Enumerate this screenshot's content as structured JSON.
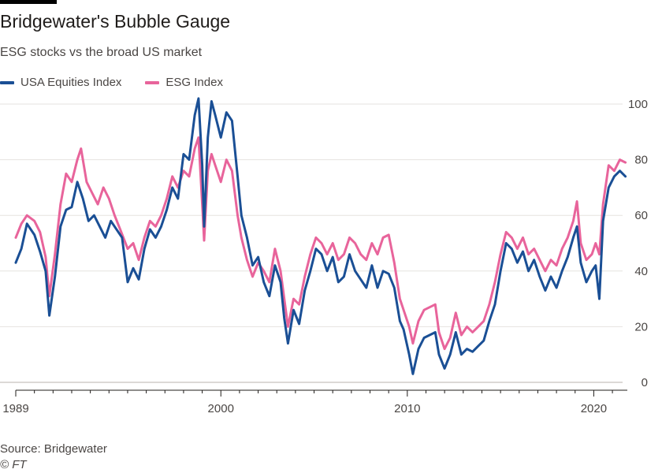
{
  "brand": {
    "bar_color": "#000000"
  },
  "chart_data": {
    "type": "line",
    "title": "Bridgewater's Bubble Gauge",
    "subtitle": "ESG stocks vs the broad US market",
    "xlabel": "",
    "ylabel": "",
    "xlim": [
      1989,
      2021.8
    ],
    "ylim": [
      0,
      100
    ],
    "x_ticks": [
      1989,
      2000,
      2010,
      2020
    ],
    "x_tick_labels": [
      "1989",
      "2000",
      "2010",
      "2020"
    ],
    "y_ticks": [
      0,
      20,
      40,
      60,
      80,
      100
    ],
    "y_tick_labels": [
      "0",
      "20",
      "40",
      "60",
      "80",
      "100"
    ],
    "grid": true,
    "legend_position": "top-left",
    "series": [
      {
        "name": "USA Equities Index",
        "color": "#1a4f95",
        "points": [
          [
            1989.0,
            43
          ],
          [
            1989.3,
            48
          ],
          [
            1989.6,
            57
          ],
          [
            1990.0,
            53
          ],
          [
            1990.3,
            47
          ],
          [
            1990.6,
            40
          ],
          [
            1990.8,
            24
          ],
          [
            1991.1,
            38
          ],
          [
            1991.4,
            56
          ],
          [
            1991.7,
            62
          ],
          [
            1992.0,
            63
          ],
          [
            1992.3,
            72
          ],
          [
            1992.6,
            66
          ],
          [
            1992.9,
            58
          ],
          [
            1993.2,
            60
          ],
          [
            1993.5,
            56
          ],
          [
            1993.8,
            52
          ],
          [
            1994.1,
            58
          ],
          [
            1994.4,
            55
          ],
          [
            1994.7,
            52
          ],
          [
            1995.0,
            36
          ],
          [
            1995.3,
            41
          ],
          [
            1995.6,
            37
          ],
          [
            1995.9,
            48
          ],
          [
            1996.2,
            55
          ],
          [
            1996.5,
            52
          ],
          [
            1996.8,
            56
          ],
          [
            1997.1,
            62
          ],
          [
            1997.4,
            70
          ],
          [
            1997.7,
            66
          ],
          [
            1998.0,
            82
          ],
          [
            1998.3,
            80
          ],
          [
            1998.6,
            96
          ],
          [
            1998.8,
            102
          ],
          [
            1999.0,
            78
          ],
          [
            1999.1,
            56
          ],
          [
            1999.3,
            88
          ],
          [
            1999.5,
            101
          ],
          [
            1999.7,
            96
          ],
          [
            2000.0,
            88
          ],
          [
            2000.3,
            97
          ],
          [
            2000.6,
            94
          ],
          [
            2000.9,
            74
          ],
          [
            2001.1,
            60
          ],
          [
            2001.4,
            52
          ],
          [
            2001.7,
            42
          ],
          [
            2002.0,
            45
          ],
          [
            2002.3,
            36
          ],
          [
            2002.6,
            31
          ],
          [
            2002.9,
            42
          ],
          [
            2003.2,
            36
          ],
          [
            2003.4,
            23
          ],
          [
            2003.6,
            14
          ],
          [
            2003.9,
            26
          ],
          [
            2004.2,
            21
          ],
          [
            2004.5,
            33
          ],
          [
            2004.8,
            40
          ],
          [
            2005.1,
            48
          ],
          [
            2005.4,
            46
          ],
          [
            2005.7,
            40
          ],
          [
            2006.0,
            45
          ],
          [
            2006.3,
            36
          ],
          [
            2006.6,
            38
          ],
          [
            2006.9,
            46
          ],
          [
            2007.2,
            40
          ],
          [
            2007.5,
            37
          ],
          [
            2007.8,
            34
          ],
          [
            2008.1,
            42
          ],
          [
            2008.4,
            34
          ],
          [
            2008.7,
            40
          ],
          [
            2009.0,
            39
          ],
          [
            2009.3,
            34
          ],
          [
            2009.6,
            22
          ],
          [
            2009.8,
            19
          ],
          [
            2010.1,
            10
          ],
          [
            2010.3,
            3
          ],
          [
            2010.6,
            12
          ],
          [
            2010.9,
            16
          ],
          [
            2011.2,
            17
          ],
          [
            2011.5,
            18
          ],
          [
            2011.7,
            10
          ],
          [
            2012.0,
            5
          ],
          [
            2012.3,
            10
          ],
          [
            2012.6,
            18
          ],
          [
            2012.9,
            10
          ],
          [
            2013.2,
            12
          ],
          [
            2013.5,
            11
          ],
          [
            2013.8,
            13
          ],
          [
            2014.1,
            15
          ],
          [
            2014.4,
            22
          ],
          [
            2014.7,
            28
          ],
          [
            2015.0,
            40
          ],
          [
            2015.3,
            50
          ],
          [
            2015.6,
            48
          ],
          [
            2015.9,
            43
          ],
          [
            2016.2,
            47
          ],
          [
            2016.5,
            40
          ],
          [
            2016.8,
            44
          ],
          [
            2017.1,
            38
          ],
          [
            2017.4,
            33
          ],
          [
            2017.7,
            38
          ],
          [
            2018.0,
            34
          ],
          [
            2018.3,
            40
          ],
          [
            2018.6,
            45
          ],
          [
            2018.9,
            52
          ],
          [
            2019.1,
            56
          ],
          [
            2019.3,
            43
          ],
          [
            2019.6,
            36
          ],
          [
            2019.9,
            40
          ],
          [
            2020.1,
            42
          ],
          [
            2020.3,
            30
          ],
          [
            2020.5,
            58
          ],
          [
            2020.8,
            70
          ],
          [
            2021.1,
            74
          ],
          [
            2021.4,
            76
          ],
          [
            2021.7,
            74
          ]
        ]
      },
      {
        "name": "ESG Index",
        "color": "#e8649b",
        "points": [
          [
            1989.0,
            52
          ],
          [
            1989.3,
            57
          ],
          [
            1989.6,
            60
          ],
          [
            1990.0,
            58
          ],
          [
            1990.3,
            54
          ],
          [
            1990.6,
            45
          ],
          [
            1990.8,
            31
          ],
          [
            1991.1,
            46
          ],
          [
            1991.4,
            64
          ],
          [
            1991.7,
            75
          ],
          [
            1992.0,
            72
          ],
          [
            1992.3,
            80
          ],
          [
            1992.5,
            84
          ],
          [
            1992.8,
            72
          ],
          [
            1993.1,
            68
          ],
          [
            1993.4,
            64
          ],
          [
            1993.7,
            70
          ],
          [
            1994.0,
            66
          ],
          [
            1994.3,
            60
          ],
          [
            1994.6,
            55
          ],
          [
            1995.0,
            48
          ],
          [
            1995.3,
            50
          ],
          [
            1995.6,
            44
          ],
          [
            1995.9,
            52
          ],
          [
            1996.2,
            58
          ],
          [
            1996.5,
            56
          ],
          [
            1996.8,
            60
          ],
          [
            1997.1,
            66
          ],
          [
            1997.4,
            74
          ],
          [
            1997.7,
            70
          ],
          [
            1998.0,
            76
          ],
          [
            1998.3,
            74
          ],
          [
            1998.6,
            84
          ],
          [
            1998.8,
            88
          ],
          [
            1999.0,
            64
          ],
          [
            1999.1,
            51
          ],
          [
            1999.3,
            76
          ],
          [
            1999.5,
            82
          ],
          [
            1999.7,
            78
          ],
          [
            2000.0,
            72
          ],
          [
            2000.3,
            80
          ],
          [
            2000.6,
            76
          ],
          [
            2000.9,
            60
          ],
          [
            2001.1,
            52
          ],
          [
            2001.4,
            44
          ],
          [
            2001.7,
            38
          ],
          [
            2002.0,
            43
          ],
          [
            2002.3,
            40
          ],
          [
            2002.6,
            36
          ],
          [
            2002.9,
            48
          ],
          [
            2003.2,
            40
          ],
          [
            2003.4,
            30
          ],
          [
            2003.6,
            20
          ],
          [
            2003.9,
            30
          ],
          [
            2004.2,
            28
          ],
          [
            2004.5,
            38
          ],
          [
            2004.8,
            46
          ],
          [
            2005.1,
            52
          ],
          [
            2005.4,
            50
          ],
          [
            2005.7,
            46
          ],
          [
            2006.0,
            50
          ],
          [
            2006.3,
            44
          ],
          [
            2006.6,
            46
          ],
          [
            2006.9,
            52
          ],
          [
            2007.2,
            50
          ],
          [
            2007.5,
            46
          ],
          [
            2007.8,
            44
          ],
          [
            2008.1,
            50
          ],
          [
            2008.4,
            46
          ],
          [
            2008.7,
            52
          ],
          [
            2009.0,
            53
          ],
          [
            2009.3,
            43
          ],
          [
            2009.6,
            30
          ],
          [
            2009.8,
            26
          ],
          [
            2010.1,
            20
          ],
          [
            2010.3,
            14
          ],
          [
            2010.6,
            22
          ],
          [
            2010.9,
            26
          ],
          [
            2011.2,
            27
          ],
          [
            2011.5,
            28
          ],
          [
            2011.7,
            18
          ],
          [
            2012.0,
            12
          ],
          [
            2012.3,
            16
          ],
          [
            2012.6,
            25
          ],
          [
            2012.9,
            17
          ],
          [
            2013.2,
            20
          ],
          [
            2013.5,
            18
          ],
          [
            2013.8,
            20
          ],
          [
            2014.1,
            22
          ],
          [
            2014.4,
            28
          ],
          [
            2014.7,
            36
          ],
          [
            2015.0,
            46
          ],
          [
            2015.3,
            54
          ],
          [
            2015.6,
            52
          ],
          [
            2015.9,
            48
          ],
          [
            2016.2,
            52
          ],
          [
            2016.5,
            46
          ],
          [
            2016.8,
            48
          ],
          [
            2017.1,
            44
          ],
          [
            2017.4,
            40
          ],
          [
            2017.7,
            44
          ],
          [
            2018.0,
            42
          ],
          [
            2018.3,
            48
          ],
          [
            2018.6,
            52
          ],
          [
            2018.9,
            58
          ],
          [
            2019.1,
            65
          ],
          [
            2019.3,
            50
          ],
          [
            2019.6,
            44
          ],
          [
            2019.9,
            46
          ],
          [
            2020.1,
            50
          ],
          [
            2020.3,
            46
          ],
          [
            2020.5,
            64
          ],
          [
            2020.8,
            78
          ],
          [
            2021.1,
            76
          ],
          [
            2021.4,
            80
          ],
          [
            2021.7,
            79
          ]
        ]
      }
    ]
  },
  "source": "Source: Bridgewater",
  "copyright": "© FT"
}
